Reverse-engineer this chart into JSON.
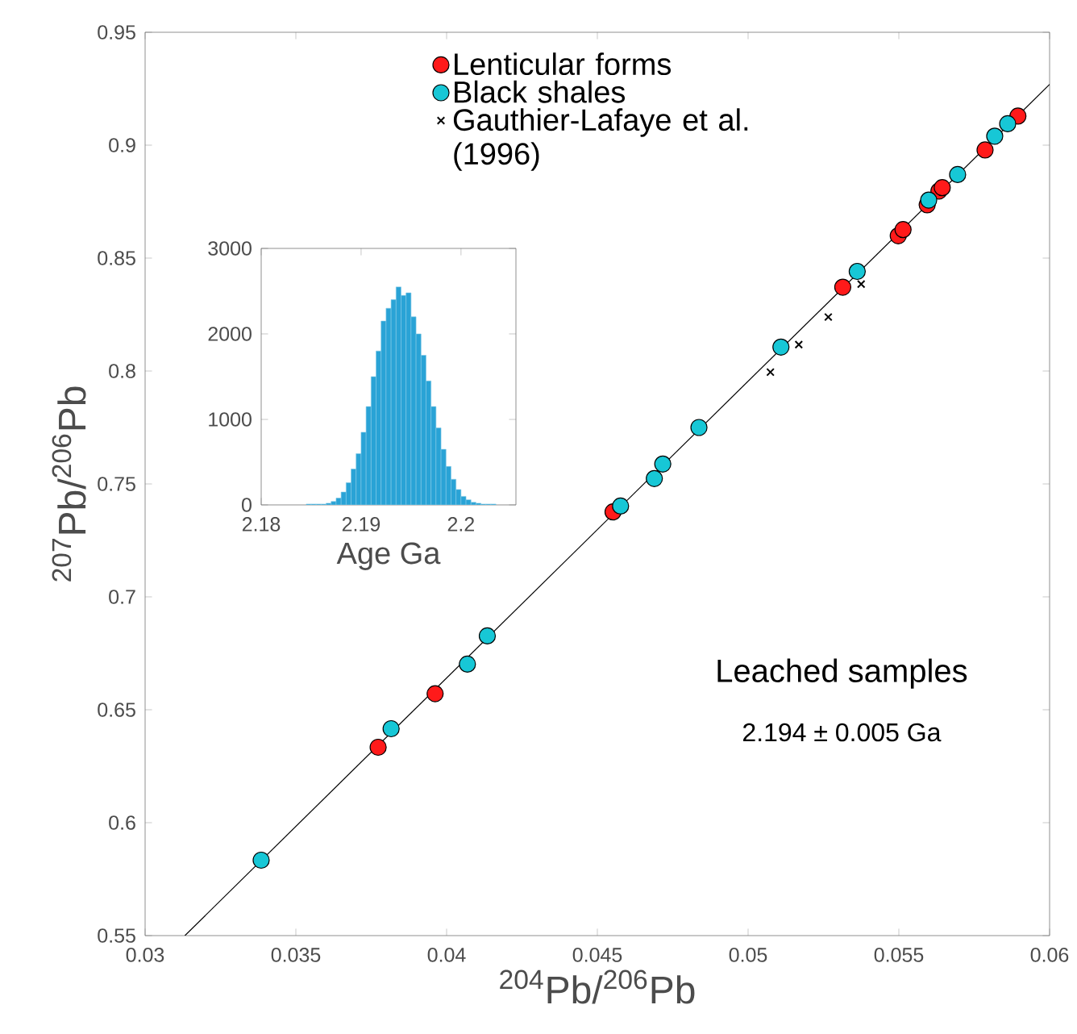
{
  "chart_data": [
    {
      "type": "scatter",
      "xlabel": "$^{204}$Pb/$^{206}$Pb",
      "ylabel": "$^{207}$Pb/$^{206}$Pb",
      "xlim": [
        0.03,
        0.06
      ],
      "ylim": [
        0.55,
        0.95
      ],
      "xticks": [
        0.03,
        0.035,
        0.04,
        0.045,
        0.05,
        0.055,
        0.06
      ],
      "yticks": [
        0.55,
        0.6,
        0.65,
        0.7,
        0.75,
        0.8,
        0.85,
        0.9,
        0.95
      ],
      "legend": "top",
      "annotations": [
        "Leached samples",
        "2.194 ± 0.005 Ga"
      ],
      "series": [
        {
          "type": "line",
          "color": "#000000",
          "marker": "none",
          "x": [
            0.03132,
            0.06
          ],
          "values": [
            0.55,
            0.9269
          ]
        },
        {
          "type": "scatter",
          "name": "Lenticular forms",
          "color": "#ff1a1a",
          "marker": "circle",
          "x": [
            0.03773,
            0.03962,
            0.04552,
            0.05314,
            0.05498,
            0.05514,
            0.05594,
            0.05633,
            0.05644,
            0.05786,
            0.05895
          ],
          "values": [
            0.6334,
            0.6571,
            0.7376,
            0.8371,
            0.8599,
            0.8626,
            0.8736,
            0.8797,
            0.8812,
            0.8979,
            0.9129
          ]
        },
        {
          "type": "scatter",
          "name": "Black shales",
          "color": "#17c7d6",
          "marker": "circle",
          "x": [
            0.03385,
            0.03816,
            0.04069,
            0.04135,
            0.04577,
            0.04689,
            0.04717,
            0.04837,
            0.05109,
            0.05362,
            0.05599,
            0.05695,
            0.05818,
            0.05861
          ],
          "values": [
            0.5834,
            0.6416,
            0.6702,
            0.6827,
            0.7402,
            0.7524,
            0.7588,
            0.775,
            0.8106,
            0.8441,
            0.8757,
            0.887,
            0.904,
            0.9095
          ]
        },
        {
          "type": "scatter",
          "name": "Gauthier-Lafaye et al. (1996)",
          "color": "#000000",
          "marker": "cross",
          "x": [
            0.05074,
            0.05168,
            0.05266,
            0.05375
          ],
          "values": [
            0.7995,
            0.8117,
            0.8239,
            0.8385
          ]
        }
      ]
    },
    {
      "type": "histogram",
      "xlabel": "Age Ga",
      "color": "#29a3d6",
      "xlim": [
        2.18,
        2.2055
      ],
      "ylim": [
        0,
        3000
      ],
      "xticks": [
        2.18,
        2.19,
        2.2
      ],
      "yticks": [
        0,
        1000,
        2000,
        3000
      ],
      "bins": [
        2.1845,
        2.185,
        2.1855,
        2.186,
        2.1865,
        2.187,
        2.1875,
        2.188,
        2.1885,
        2.189,
        2.1895,
        2.19,
        2.1905,
        2.191,
        2.1915,
        2.192,
        2.1925,
        2.193,
        2.1935,
        2.194,
        2.1945,
        2.195,
        2.1955,
        2.196,
        2.1965,
        2.197,
        2.1975,
        2.198,
        2.1985,
        2.199,
        2.1995,
        2.2,
        2.2005,
        2.201,
        2.2015,
        2.202,
        2.2025,
        2.203,
        2.2035
      ],
      "values": [
        10,
        10,
        10,
        10,
        20,
        40,
        80,
        150,
        260,
        420,
        600,
        850,
        1150,
        1500,
        1800,
        2150,
        2300,
        2400,
        2550,
        2450,
        2480,
        2200,
        2000,
        1750,
        1450,
        1150,
        900,
        650,
        450,
        300,
        180,
        100,
        60,
        30,
        20,
        10,
        10,
        10
      ]
    }
  ]
}
